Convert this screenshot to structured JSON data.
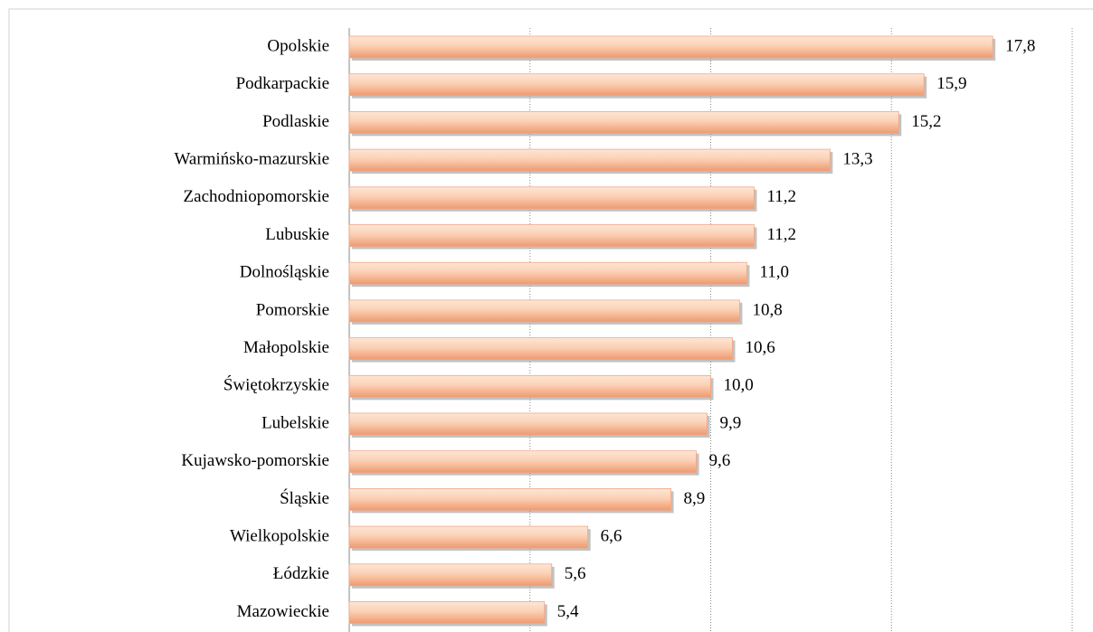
{
  "chart_data": {
    "type": "hbar",
    "categories": [
      "Opolskie",
      "Podkarpackie",
      "Podlaskie",
      "Warmińsko-mazurskie",
      "Zachodniopomorskie",
      "Lubuskie",
      "Dolnośląskie",
      "Pomorskie",
      "Małopolskie",
      "Świętokrzyskie",
      "Lubelskie",
      "Kujawsko-pomorskie",
      "Śląskie",
      "Wielkopolskie",
      "Łódzkie",
      "Mazowieckie"
    ],
    "values": [
      17.8,
      15.9,
      15.2,
      13.3,
      11.2,
      11.2,
      11.0,
      10.8,
      10.6,
      10.0,
      9.9,
      9.6,
      8.9,
      6.6,
      5.6,
      5.4
    ],
    "value_labels": [
      "17,8",
      "15,9",
      "15,2",
      "13,3",
      "11,2",
      "11,2",
      "11,0",
      "10,8",
      "10,6",
      "10,0",
      "9,9",
      "9,6",
      "8,9",
      "6,6",
      "5,6",
      "5,4"
    ],
    "color": "#f4a582",
    "xlim": [
      0,
      20
    ],
    "xticks": [
      0,
      5,
      10,
      15,
      20
    ],
    "grid": true
  }
}
